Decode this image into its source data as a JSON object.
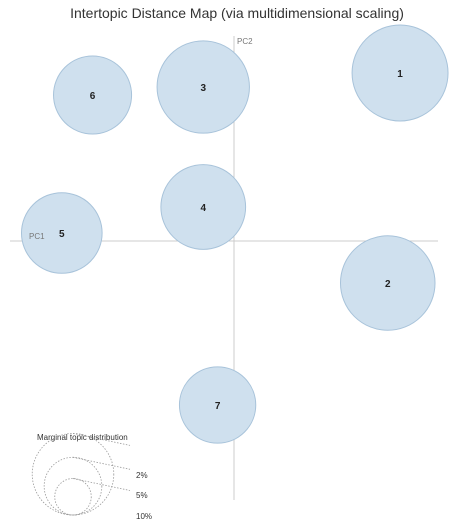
{
  "chart_data": {
    "type": "scatter",
    "title": "Intertopic Distance Map (via multidimensional scaling)",
    "axis_labels": {
      "x": "PC1",
      "y": "PC2"
    },
    "xlim": [
      -1.0,
      1.0
    ],
    "ylim": [
      -1.0,
      1.0
    ],
    "grid": false,
    "bubble_color": "#cfe0ee",
    "bubble_stroke": "#a8c3da",
    "axis_color": "#cccccc",
    "topics": [
      {
        "label": "1",
        "x": 0.81,
        "y": 0.84,
        "size_pct": 6.8
      },
      {
        "label": "2",
        "x": 0.75,
        "y": -0.21,
        "size_pct": 6.6
      },
      {
        "label": "3",
        "x": -0.15,
        "y": 0.77,
        "size_pct": 6.3
      },
      {
        "label": "4",
        "x": -0.15,
        "y": 0.17,
        "size_pct": 5.3
      },
      {
        "label": "5",
        "x": -0.84,
        "y": 0.04,
        "size_pct": 4.8
      },
      {
        "label": "6",
        "x": -0.69,
        "y": 0.73,
        "size_pct": 4.5
      },
      {
        "label": "7",
        "x": -0.08,
        "y": -0.82,
        "size_pct": 4.3
      }
    ],
    "legend": {
      "title": "Marginal topic distribution",
      "placement": "bottom-left",
      "entries": [
        {
          "label": "2%",
          "value": 2
        },
        {
          "label": "5%",
          "value": 5
        },
        {
          "label": "10%",
          "value": 10
        }
      ]
    }
  }
}
